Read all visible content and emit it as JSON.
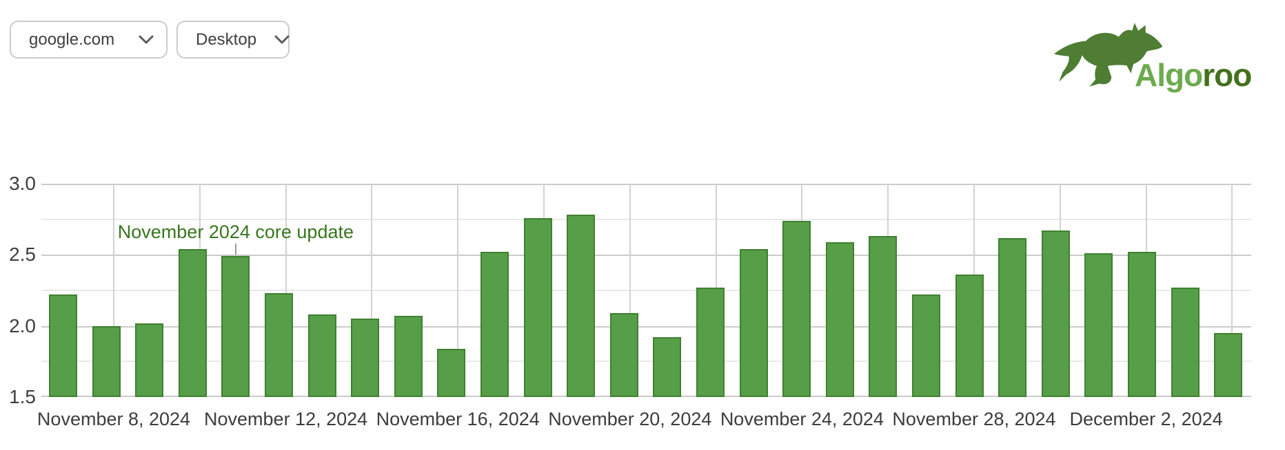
{
  "header": {
    "site_select": {
      "value": "google.com"
    },
    "device_select": {
      "value": "Desktop"
    },
    "logo": {
      "word_light": "Algo",
      "word_dark": "roo",
      "light_green": "#6caa4e",
      "dark_green": "#44701e",
      "kangaroo_color": "#4e7d33"
    }
  },
  "chart_data": {
    "type": "bar",
    "title": "",
    "xlabel": "",
    "ylabel": "",
    "ylim": [
      1.5,
      3.0
    ],
    "ytick_labels": [
      "3.0",
      "2.5",
      "2.0",
      "1.5"
    ],
    "yticks": [
      3.0,
      2.5,
      2.0,
      1.5
    ],
    "y_minor_ticks": [
      2.75,
      2.25,
      1.75
    ],
    "grid": "on",
    "legend": "none",
    "bar_color": "#579e48",
    "bar_border_color": "#3f8030",
    "dates": [
      "2024-11-07",
      "2024-11-08",
      "2024-11-09",
      "2024-11-10",
      "2024-11-11",
      "2024-11-12",
      "2024-11-13",
      "2024-11-14",
      "2024-11-15",
      "2024-11-16",
      "2024-11-17",
      "2024-11-18",
      "2024-11-19",
      "2024-11-20",
      "2024-11-21",
      "2024-11-22",
      "2024-11-23",
      "2024-11-24",
      "2024-11-25",
      "2024-11-26",
      "2024-11-27",
      "2024-11-28",
      "2024-11-29",
      "2024-11-30",
      "2024-12-01",
      "2024-12-02",
      "2024-12-03",
      "2024-12-04"
    ],
    "values": [
      2.22,
      2.0,
      2.02,
      2.54,
      2.49,
      2.23,
      2.08,
      2.05,
      2.07,
      1.84,
      2.52,
      2.76,
      2.78,
      2.09,
      1.92,
      2.27,
      2.54,
      2.74,
      2.59,
      2.63,
      2.22,
      2.36,
      2.62,
      2.67,
      2.51,
      2.52,
      2.27,
      1.95
    ],
    "xtick_labels": [
      "November 8, 2024",
      "November 12, 2024",
      "November 16, 2024",
      "November 20, 2024",
      "November 24, 2024",
      "November 28, 2024",
      "December 2, 2024"
    ],
    "xtick_gridline_indexes": [
      0,
      2,
      4,
      6,
      8,
      10,
      12
    ],
    "vertical_gridlines_count": 14,
    "annotation": {
      "text": "November 2024 core update",
      "bar_index": 4,
      "color": "#38761d",
      "stem_color": "#9a9a9a"
    }
  }
}
